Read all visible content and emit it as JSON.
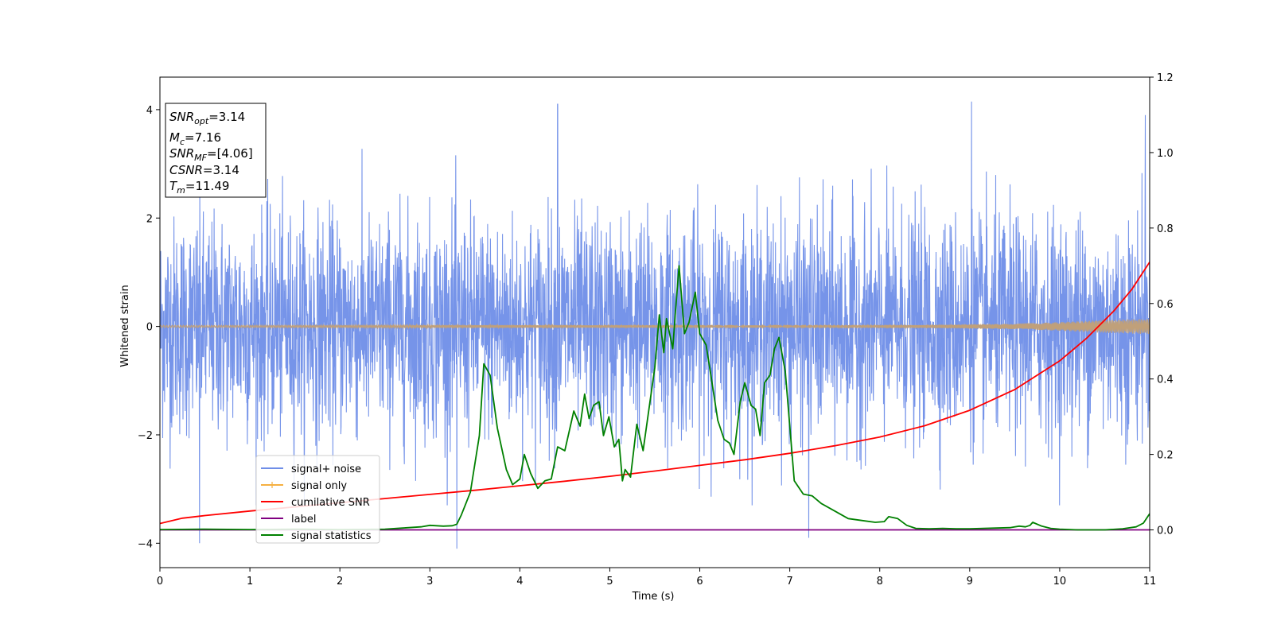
{
  "chart_data": {
    "type": "line",
    "title": "",
    "xlabel": "Time (s)",
    "ylabel": "Whitened strain",
    "y2label": "",
    "xlim": [
      0,
      11
    ],
    "ylim": [
      -4.45,
      4.6
    ],
    "y2lim": [
      -0.1,
      1.2
    ],
    "x_ticks": [
      "0",
      "1",
      "2",
      "3",
      "4",
      "5",
      "6",
      "7",
      "8",
      "9",
      "10",
      "11"
    ],
    "y_ticks": [
      "4",
      "2",
      "0",
      "−2",
      "−4"
    ],
    "y2_ticks": [
      "1.2",
      "1.0",
      "0.8",
      "0.6",
      "0.4",
      "0.2",
      "0.0"
    ],
    "grid": false,
    "legend_position": "lower-left",
    "colors": {
      "signal_noise": "#6f8ee8",
      "signal_only": "#f5b041",
      "signal_only_overlap": "#c0a07a",
      "cumulative_snr": "#ff0000",
      "label": "#800080",
      "signal_statistics": "#008000"
    },
    "series": [
      {
        "name": "signal+ noise",
        "axis": "left",
        "note_summary": "dense noise, typical band -2 to 2, peaks between 3.5 and 4.2 and troughs near -4.1",
        "peak_points": [
          [
            0.44,
            -4.0
          ],
          [
            3.3,
            -4.1
          ],
          [
            4.42,
            4.1
          ],
          [
            9.02,
            4.15
          ],
          [
            10.95,
            3.9
          ],
          [
            7.21,
            -3.9
          ]
        ]
      },
      {
        "name": "signal only",
        "axis": "left",
        "envelope": {
          "x": [
            0,
            8.5,
            9.5,
            10.0,
            10.5,
            11.0
          ],
          "amplitude": [
            0.02,
            0.03,
            0.05,
            0.08,
            0.12,
            0.14
          ]
        }
      },
      {
        "name": "cumilative SNR",
        "axis": "right",
        "x": [
          0,
          0.25,
          0.5,
          1,
          1.5,
          2,
          2.5,
          3,
          3.5,
          4,
          4.5,
          5,
          5.5,
          6,
          6.5,
          7,
          7.5,
          8,
          8.5,
          9,
          9.5,
          10,
          10.3,
          10.6,
          10.8,
          11
        ],
        "values": [
          0.017,
          0.031,
          0.038,
          0.05,
          0.061,
          0.072,
          0.083,
          0.094,
          0.105,
          0.117,
          0.129,
          0.142,
          0.156,
          0.171,
          0.186,
          0.203,
          0.223,
          0.246,
          0.276,
          0.317,
          0.372,
          0.448,
          0.508,
          0.58,
          0.637,
          0.71
        ]
      },
      {
        "name": "label",
        "axis": "right",
        "x": [
          0,
          11
        ],
        "values": [
          0.0,
          0.0
        ]
      },
      {
        "name": "signal statistics",
        "axis": "right",
        "x": [
          0,
          0.5,
          1,
          1.5,
          2,
          2.5,
          2.7,
          2.9,
          3.0,
          3.15,
          3.25,
          3.3,
          3.35,
          3.45,
          3.55,
          3.6,
          3.67,
          3.75,
          3.85,
          3.92,
          4.0,
          4.05,
          4.12,
          4.2,
          4.28,
          4.35,
          4.42,
          4.5,
          4.6,
          4.67,
          4.72,
          4.77,
          4.82,
          4.88,
          4.93,
          4.99,
          5.05,
          5.1,
          5.14,
          5.17,
          5.23,
          5.3,
          5.37,
          5.45,
          5.5,
          5.55,
          5.6,
          5.63,
          5.7,
          5.73,
          5.77,
          5.83,
          5.88,
          5.95,
          6.0,
          6.07,
          6.13,
          6.2,
          6.27,
          6.33,
          6.38,
          6.45,
          6.5,
          6.57,
          6.62,
          6.67,
          6.72,
          6.78,
          6.83,
          6.88,
          6.95,
          7.05,
          7.15,
          7.25,
          7.35,
          7.5,
          7.65,
          7.8,
          7.95,
          8.05,
          8.1,
          8.2,
          8.3,
          8.4,
          8.55,
          8.7,
          8.85,
          9.0,
          9.15,
          9.3,
          9.45,
          9.55,
          9.62,
          9.67,
          9.7,
          9.8,
          9.9,
          10.0,
          10.2,
          10.5,
          10.7,
          10.85,
          10.93,
          11.0
        ],
        "values": [
          0.001,
          0.002,
          0.001,
          0.002,
          0.001,
          0.002,
          0.005,
          0.008,
          0.012,
          0.01,
          0.011,
          0.015,
          0.04,
          0.1,
          0.25,
          0.44,
          0.41,
          0.27,
          0.16,
          0.12,
          0.135,
          0.2,
          0.15,
          0.11,
          0.13,
          0.135,
          0.22,
          0.21,
          0.315,
          0.275,
          0.36,
          0.295,
          0.33,
          0.34,
          0.25,
          0.3,
          0.22,
          0.24,
          0.13,
          0.16,
          0.14,
          0.28,
          0.21,
          0.345,
          0.43,
          0.57,
          0.47,
          0.56,
          0.48,
          0.58,
          0.7,
          0.52,
          0.55,
          0.63,
          0.52,
          0.49,
          0.4,
          0.29,
          0.24,
          0.23,
          0.2,
          0.34,
          0.39,
          0.33,
          0.32,
          0.25,
          0.39,
          0.41,
          0.48,
          0.51,
          0.42,
          0.13,
          0.095,
          0.09,
          0.07,
          0.05,
          0.03,
          0.025,
          0.02,
          0.022,
          0.035,
          0.03,
          0.012,
          0.004,
          0.003,
          0.004,
          0.003,
          0.003,
          0.004,
          0.005,
          0.006,
          0.01,
          0.008,
          0.012,
          0.02,
          0.01,
          0.004,
          0.002,
          0.0,
          0.0,
          0.003,
          0.008,
          0.018,
          0.043
        ]
      }
    ],
    "annotation_box": [
      {
        "sym": "SNR",
        "sub": "opt",
        "value": "=3.14"
      },
      {
        "sym": "M",
        "sub": "c",
        "value": "=7.16"
      },
      {
        "sym": "SNR",
        "sub": "MF",
        "value": "=[4.06]"
      },
      {
        "sym": "CSNR",
        "sub": "",
        "value": "=3.14"
      },
      {
        "sym": "T",
        "sub": "m",
        "value": "=11.49"
      }
    ]
  }
}
